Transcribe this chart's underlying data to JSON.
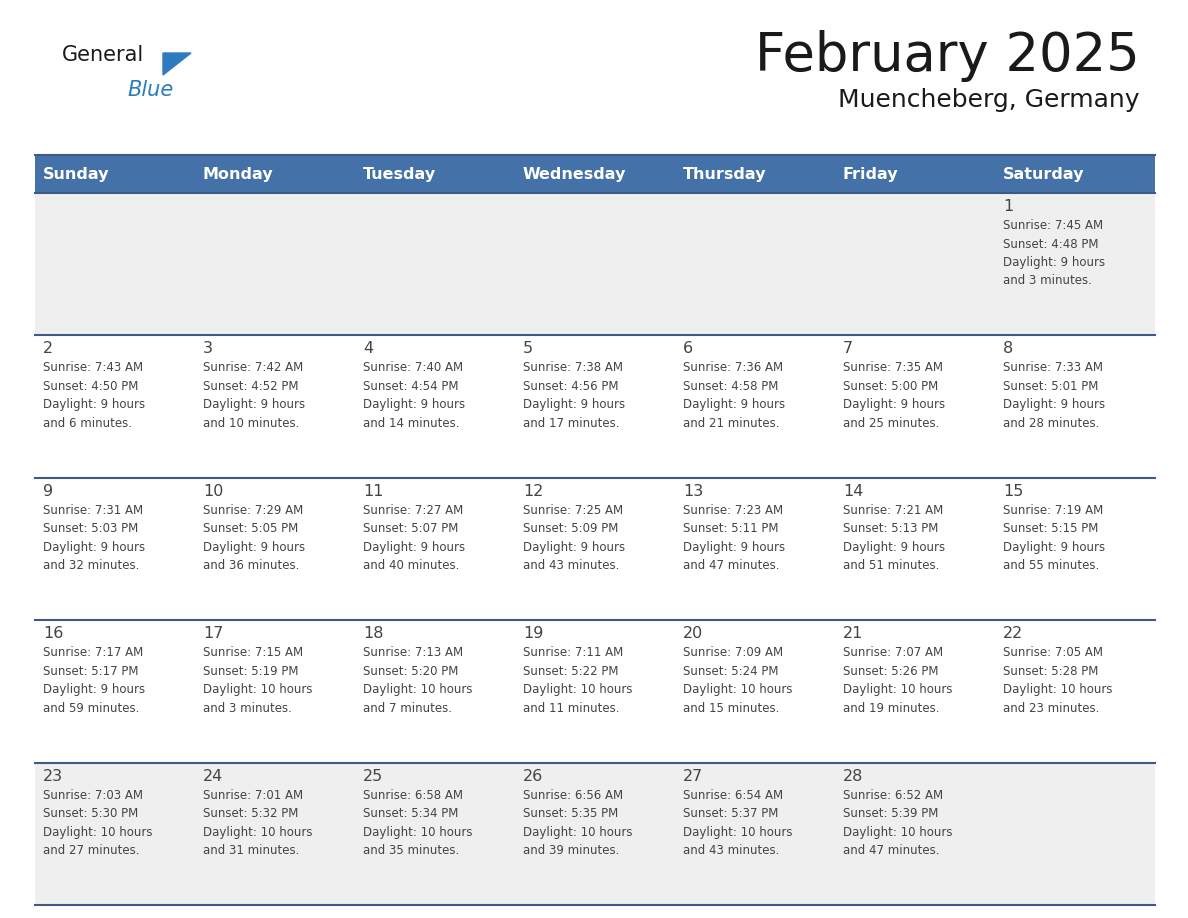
{
  "title": "February 2025",
  "subtitle": "Muencheberg, Germany",
  "header_bg": "#4472A8",
  "header_text_color": "#FFFFFF",
  "cell_bg_week1": "#EFEFEF",
  "cell_bg_default": "#FFFFFF",
  "cell_bg_last": "#EFEFEF",
  "separator_color": "#3D5A8A",
  "text_color": "#444444",
  "days_of_week": [
    "Sunday",
    "Monday",
    "Tuesday",
    "Wednesday",
    "Thursday",
    "Friday",
    "Saturday"
  ],
  "logo_general_color": "#1a1a1a",
  "logo_blue_color": "#2E7BBF",
  "logo_triangle_color": "#2E7BBF",
  "weeks": [
    [
      {
        "day": "",
        "info": ""
      },
      {
        "day": "",
        "info": ""
      },
      {
        "day": "",
        "info": ""
      },
      {
        "day": "",
        "info": ""
      },
      {
        "day": "",
        "info": ""
      },
      {
        "day": "",
        "info": ""
      },
      {
        "day": "1",
        "info": "Sunrise: 7:45 AM\nSunset: 4:48 PM\nDaylight: 9 hours\nand 3 minutes."
      }
    ],
    [
      {
        "day": "2",
        "info": "Sunrise: 7:43 AM\nSunset: 4:50 PM\nDaylight: 9 hours\nand 6 minutes."
      },
      {
        "day": "3",
        "info": "Sunrise: 7:42 AM\nSunset: 4:52 PM\nDaylight: 9 hours\nand 10 minutes."
      },
      {
        "day": "4",
        "info": "Sunrise: 7:40 AM\nSunset: 4:54 PM\nDaylight: 9 hours\nand 14 minutes."
      },
      {
        "day": "5",
        "info": "Sunrise: 7:38 AM\nSunset: 4:56 PM\nDaylight: 9 hours\nand 17 minutes."
      },
      {
        "day": "6",
        "info": "Sunrise: 7:36 AM\nSunset: 4:58 PM\nDaylight: 9 hours\nand 21 minutes."
      },
      {
        "day": "7",
        "info": "Sunrise: 7:35 AM\nSunset: 5:00 PM\nDaylight: 9 hours\nand 25 minutes."
      },
      {
        "day": "8",
        "info": "Sunrise: 7:33 AM\nSunset: 5:01 PM\nDaylight: 9 hours\nand 28 minutes."
      }
    ],
    [
      {
        "day": "9",
        "info": "Sunrise: 7:31 AM\nSunset: 5:03 PM\nDaylight: 9 hours\nand 32 minutes."
      },
      {
        "day": "10",
        "info": "Sunrise: 7:29 AM\nSunset: 5:05 PM\nDaylight: 9 hours\nand 36 minutes."
      },
      {
        "day": "11",
        "info": "Sunrise: 7:27 AM\nSunset: 5:07 PM\nDaylight: 9 hours\nand 40 minutes."
      },
      {
        "day": "12",
        "info": "Sunrise: 7:25 AM\nSunset: 5:09 PM\nDaylight: 9 hours\nand 43 minutes."
      },
      {
        "day": "13",
        "info": "Sunrise: 7:23 AM\nSunset: 5:11 PM\nDaylight: 9 hours\nand 47 minutes."
      },
      {
        "day": "14",
        "info": "Sunrise: 7:21 AM\nSunset: 5:13 PM\nDaylight: 9 hours\nand 51 minutes."
      },
      {
        "day": "15",
        "info": "Sunrise: 7:19 AM\nSunset: 5:15 PM\nDaylight: 9 hours\nand 55 minutes."
      }
    ],
    [
      {
        "day": "16",
        "info": "Sunrise: 7:17 AM\nSunset: 5:17 PM\nDaylight: 9 hours\nand 59 minutes."
      },
      {
        "day": "17",
        "info": "Sunrise: 7:15 AM\nSunset: 5:19 PM\nDaylight: 10 hours\nand 3 minutes."
      },
      {
        "day": "18",
        "info": "Sunrise: 7:13 AM\nSunset: 5:20 PM\nDaylight: 10 hours\nand 7 minutes."
      },
      {
        "day": "19",
        "info": "Sunrise: 7:11 AM\nSunset: 5:22 PM\nDaylight: 10 hours\nand 11 minutes."
      },
      {
        "day": "20",
        "info": "Sunrise: 7:09 AM\nSunset: 5:24 PM\nDaylight: 10 hours\nand 15 minutes."
      },
      {
        "day": "21",
        "info": "Sunrise: 7:07 AM\nSunset: 5:26 PM\nDaylight: 10 hours\nand 19 minutes."
      },
      {
        "day": "22",
        "info": "Sunrise: 7:05 AM\nSunset: 5:28 PM\nDaylight: 10 hours\nand 23 minutes."
      }
    ],
    [
      {
        "day": "23",
        "info": "Sunrise: 7:03 AM\nSunset: 5:30 PM\nDaylight: 10 hours\nand 27 minutes."
      },
      {
        "day": "24",
        "info": "Sunrise: 7:01 AM\nSunset: 5:32 PM\nDaylight: 10 hours\nand 31 minutes."
      },
      {
        "day": "25",
        "info": "Sunrise: 6:58 AM\nSunset: 5:34 PM\nDaylight: 10 hours\nand 35 minutes."
      },
      {
        "day": "26",
        "info": "Sunrise: 6:56 AM\nSunset: 5:35 PM\nDaylight: 10 hours\nand 39 minutes."
      },
      {
        "day": "27",
        "info": "Sunrise: 6:54 AM\nSunset: 5:37 PM\nDaylight: 10 hours\nand 43 minutes."
      },
      {
        "day": "28",
        "info": "Sunrise: 6:52 AM\nSunset: 5:39 PM\nDaylight: 10 hours\nand 47 minutes."
      },
      {
        "day": "",
        "info": ""
      }
    ]
  ]
}
